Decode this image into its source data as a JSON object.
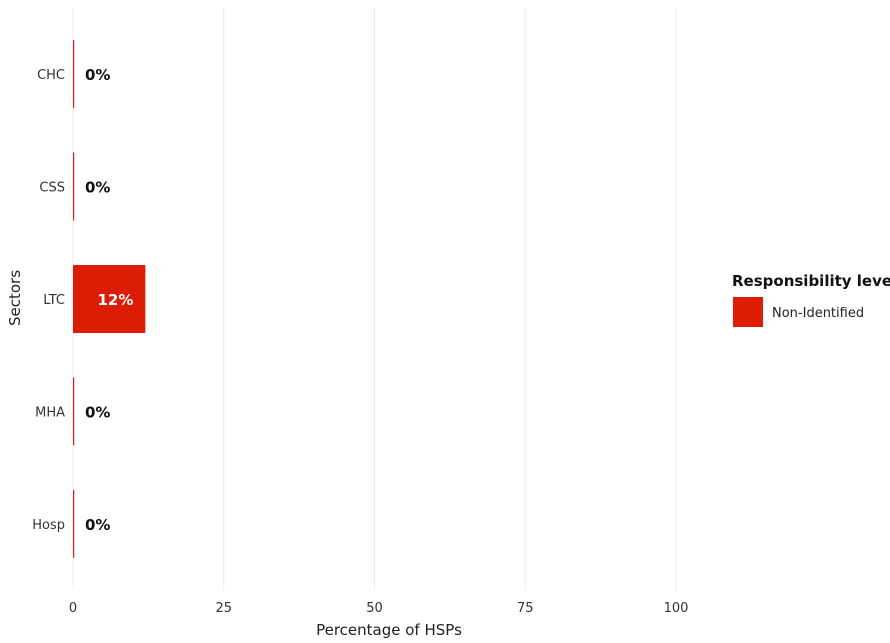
{
  "chart_data": {
    "type": "bar",
    "orientation": "horizontal",
    "categories": [
      "CHC",
      "CSS",
      "LTC",
      "MHA",
      "Hosp"
    ],
    "series": [
      {
        "name": "Non-Identified",
        "values": [
          0,
          0,
          12,
          0,
          0
        ],
        "color": "#dd1c05"
      }
    ],
    "data_labels": [
      "0%",
      "0%",
      "12%",
      "0%",
      "0%"
    ],
    "xlabel": "Percentage of HSPs",
    "ylabel": "Sectors",
    "xlim": [
      0,
      100
    ],
    "xticks": [
      0,
      25,
      50,
      75,
      100
    ],
    "grid": true,
    "legend": {
      "title": "Responsibility level",
      "placement": "right"
    }
  }
}
